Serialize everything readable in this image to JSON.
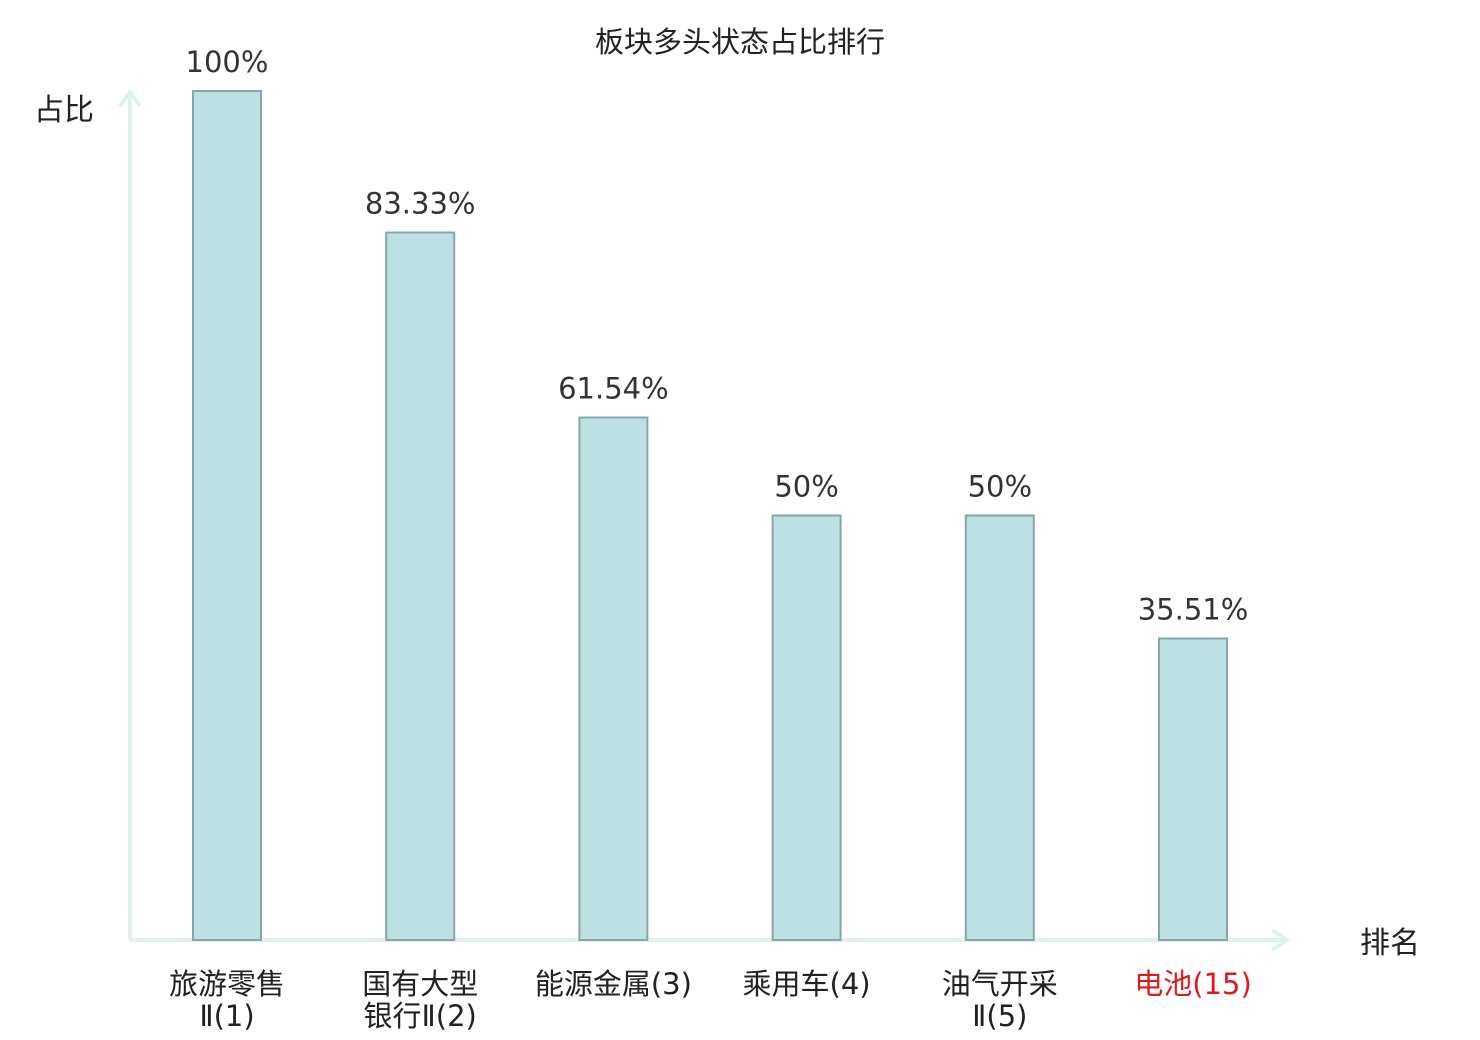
{
  "chart_data": {
    "type": "bar",
    "title": "板块多头状态占比排行",
    "xlabel": "排名",
    "ylabel": "占比",
    "categories": [
      {
        "name": "旅游零售",
        "suffix": "Ⅱ(1)",
        "lines": [
          "旅游零售",
          "Ⅱ(1)"
        ],
        "highlight": false
      },
      {
        "name": "国有大型银行",
        "suffix": "Ⅱ(2)",
        "lines": [
          "国有大型",
          "银行Ⅱ(2)"
        ],
        "highlight": false
      },
      {
        "name": "能源金属",
        "suffix": "(3)",
        "lines": [
          "能源金属(3)"
        ],
        "highlight": false
      },
      {
        "name": "乘用车",
        "suffix": "(4)",
        "lines": [
          "乘用车(4)"
        ],
        "highlight": false
      },
      {
        "name": "油气开采",
        "suffix": "Ⅱ(5)",
        "lines": [
          "油气开采",
          "Ⅱ(5)"
        ],
        "highlight": false
      },
      {
        "name": "电池",
        "suffix": "(15)",
        "lines": [
          "电池(15)"
        ],
        "highlight": true
      }
    ],
    "values": [
      100,
      83.33,
      61.54,
      50,
      50,
      35.51
    ],
    "value_labels": [
      "100%",
      "83.33%",
      "61.54%",
      "50%",
      "50%",
      "35.51%"
    ],
    "ylim": [
      0,
      100
    ],
    "grid": false,
    "colors": {
      "bar_fill": "#bde0e3",
      "bar_stroke": "#86a7aa",
      "axis": "#e0f2ef",
      "text": "#222222",
      "highlight": "#e0191f"
    }
  }
}
